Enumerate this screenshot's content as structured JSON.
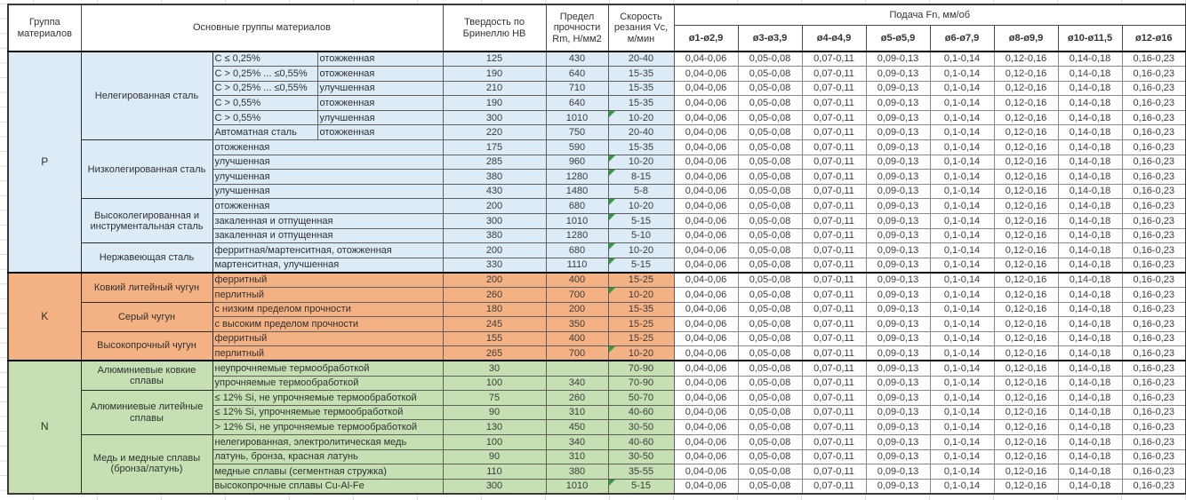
{
  "colors": {
    "p_section": "#DDEBF7",
    "k_section": "#F4B183",
    "n_section": "#C6E0B4",
    "note_marker": "#2f9e3f",
    "grid": "#dadfe6"
  },
  "header": {
    "col_group": "Группа материалов",
    "col_main": "Основные группы материалов",
    "col_hardness": "Твердость по Бринеллю HB",
    "col_strength": "Предел прочности Rm, Н/мм2",
    "col_speed": "Скорость резания Vc, м/мин",
    "col_feed": "Подача Fn, мм/об",
    "feed_cols": [
      "ø1-ø2,9",
      "ø3-ø3,9",
      "ø4-ø4,9",
      "ø5-ø5,9",
      "ø6-ø7,9",
      "ø8-ø9,9",
      "ø10-ø11,5",
      "ø12-ø16"
    ]
  },
  "feed_values": [
    "0,04-0,06",
    "0,05-0,08",
    "0,07-0,11",
    "0,09-0,13",
    "0,1-0,14",
    "0,12-0,16",
    "0,14-0,18",
    "0,16-0,23"
  ],
  "groups": [
    {
      "code": "P",
      "color": "#DDEBF7",
      "subgroups": [
        {
          "name": "Нелегированная сталь",
          "rows": [
            {
              "desc1": "C ≤ 0,25%",
              "desc2": "отожженная",
              "hb": "125",
              "rm": "430",
              "vc": "20-40",
              "note": false
            },
            {
              "desc1": "C > 0,25% ... ≤0,55%",
              "desc2": "отожженная",
              "hb": "190",
              "rm": "640",
              "vc": "15-35",
              "note": false
            },
            {
              "desc1": "C > 0,25% ... ≤0,55%",
              "desc2": "улучшенная",
              "hb": "210",
              "rm": "710",
              "vc": "15-35",
              "note": false
            },
            {
              "desc1": "C > 0,55%",
              "desc2": "отожженная",
              "hb": "190",
              "rm": "640",
              "vc": "15-35",
              "note": false
            },
            {
              "desc1": "C > 0,55%",
              "desc2": "улучшенная",
              "hb": "300",
              "rm": "1010",
              "vc": "10-20",
              "note": true
            },
            {
              "desc1": "Автоматная сталь",
              "desc2": "отожженная",
              "hb": "220",
              "rm": "750",
              "vc": "20-40",
              "note": false
            }
          ]
        },
        {
          "name": "Низколегированная сталь",
          "rows": [
            {
              "desc": "отожженная",
              "hb": "175",
              "rm": "590",
              "vc": "15-35",
              "note": false
            },
            {
              "desc": "улучшенная",
              "hb": "285",
              "rm": "960",
              "vc": "10-20",
              "note": true
            },
            {
              "desc": "улучшенная",
              "hb": "380",
              "rm": "1280",
              "vc": "8-15",
              "note": true
            },
            {
              "desc": "улучшенная",
              "hb": "430",
              "rm": "1480",
              "vc": "5-8",
              "note": false
            }
          ]
        },
        {
          "name": "Высоколегированная и инструментальная сталь",
          "rows": [
            {
              "desc": "отожженная",
              "hb": "200",
              "rm": "680",
              "vc": "10-20",
              "note": true
            },
            {
              "desc": "закаленная и отпущенная",
              "hb": "300",
              "rm": "1010",
              "vc": "5-15",
              "note": true
            },
            {
              "desc": "закаленная и отпущенная",
              "hb": "380",
              "rm": "1280",
              "vc": "5-10",
              "note": false
            }
          ]
        },
        {
          "name": "Нержавеющая сталь",
          "rows": [
            {
              "desc": "ферритная/мартенситная, отожженная",
              "hb": "200",
              "rm": "680",
              "vc": "10-20",
              "note": true
            },
            {
              "desc": "мартенситная, улучшенная",
              "hb": "330",
              "rm": "1110",
              "vc": "5-15",
              "note": true
            }
          ]
        }
      ]
    },
    {
      "code": "K",
      "color": "#F4B183",
      "subgroups": [
        {
          "name": "Ковкий литейный чугун",
          "rows": [
            {
              "desc": "ферритный",
              "hb": "200",
              "rm": "400",
              "vc": "15-25",
              "note": false
            },
            {
              "desc": "перлитный",
              "hb": "260",
              "rm": "700",
              "vc": "10-20",
              "note": true
            }
          ]
        },
        {
          "name": "Серый чугун",
          "rows": [
            {
              "desc": "с низким пределом прочности",
              "hb": "180",
              "rm": "200",
              "vc": "15-35",
              "note": false
            },
            {
              "desc": "с высоким пределом прочности",
              "hb": "245",
              "rm": "350",
              "vc": "15-25",
              "note": false
            }
          ]
        },
        {
          "name": "Высокопрочный чугун",
          "rows": [
            {
              "desc": "ферритный",
              "hb": "155",
              "rm": "400",
              "vc": "15-25",
              "note": false
            },
            {
              "desc": "перлитный",
              "hb": "265",
              "rm": "700",
              "vc": "10-20",
              "note": true
            }
          ]
        }
      ]
    },
    {
      "code": "N",
      "color": "#C6E0B4",
      "subgroups": [
        {
          "name": "Алюминиевые ковкие сплавы",
          "rows": [
            {
              "desc": "неупрочняемые термообработкой",
              "hb": "30",
              "rm": "",
              "vc": "70-90",
              "note": false
            },
            {
              "desc": "упрочняемые термообработкой",
              "hb": "100",
              "rm": "340",
              "vc": "70-90",
              "note": false
            }
          ]
        },
        {
          "name": "Алюминиевые литейные сплавы",
          "rows": [
            {
              "desc": "≤ 12% Si, не упрочняемые термообработкой",
              "hb": "75",
              "rm": "260",
              "vc": "50-70",
              "note": false
            },
            {
              "desc": "≤ 12% Si, упрочняемые термообработкой",
              "hb": "90",
              "rm": "310",
              "vc": "40-60",
              "note": false
            },
            {
              "desc": "> 12% Si, не упрочняемые термообработкой",
              "hb": "130",
              "rm": "450",
              "vc": "30-50",
              "note": false
            }
          ]
        },
        {
          "name": "Медь и медные сплавы (бронза/латунь)",
          "rows": [
            {
              "desc": "нелегированная, электролитическая медь",
              "hb": "100",
              "rm": "340",
              "vc": "40-60",
              "note": false
            },
            {
              "desc": "латунь, бронза, красная латунь",
              "hb": "90",
              "rm": "310",
              "vc": "30-50",
              "note": false
            },
            {
              "desc": "медные сплавы (сегментная стружка)",
              "hb": "110",
              "rm": "380",
              "vc": "35-55",
              "note": false
            },
            {
              "desc": "высокопрочные сплавы Cu-Al-Fe",
              "hb": "300",
              "rm": "1010",
              "vc": "5-15",
              "note": true
            }
          ]
        }
      ]
    }
  ]
}
